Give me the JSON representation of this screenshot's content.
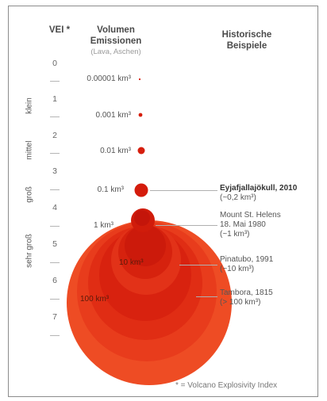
{
  "header": {
    "vei": "VEI *",
    "volume_line1": "Volumen",
    "volume_line2": "Emissionen",
    "volume_sub": "(Lava, Aschen)",
    "examples_line1": "Historische",
    "examples_line2": "Beispiele"
  },
  "vei_levels": [
    "0",
    "1",
    "2",
    "3",
    "4",
    "5",
    "6",
    "7"
  ],
  "categories": {
    "small": "klein",
    "medium": "mittel",
    "large": "groß",
    "very_large": "sehr groß"
  },
  "volumes": {
    "v1": "0.00001 km³",
    "v2": "0.001 km³",
    "v3": "0.01 km³",
    "v4": "0.1 km³",
    "v5": "1 km³",
    "v6": "10 km³",
    "v7": "100 km³"
  },
  "examples": {
    "eyja_title": "Eyjafjallajökull, 2010",
    "eyja_value": "(~0,2 km³)",
    "helens_l1": "Mount St. Helens",
    "helens_l2": "18. Mai 1980",
    "helens_l3": "(~1 km³)",
    "pinatubo_l1": "Pinatubo, 1991",
    "pinatubo_l2": "(~10 km³)",
    "tambora_l1": "Tambora, 1815",
    "tambora_l2": "(> 100 km³)"
  },
  "footnote": "* = Volcano Explosivity Index",
  "colors": {
    "dark_red": "#c8150a",
    "red": "#e22a14",
    "orange_red": "#ee4a22",
    "light": "#f4683a"
  }
}
